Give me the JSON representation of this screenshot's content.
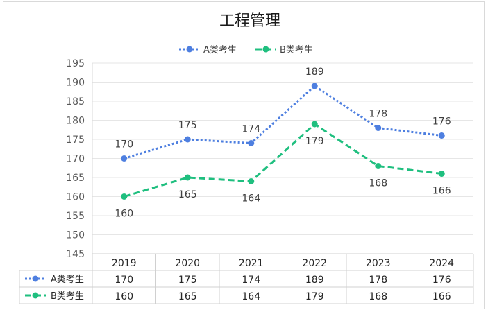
{
  "chart_data": {
    "type": "line",
    "title": "工程管理",
    "categories": [
      "2019",
      "2020",
      "2021",
      "2022",
      "2023",
      "2024"
    ],
    "ylim": [
      145,
      195
    ],
    "yticks": [
      145,
      150,
      155,
      160,
      165,
      170,
      175,
      180,
      185,
      190,
      195
    ],
    "grid": true,
    "legend_position": "top",
    "data_table": true,
    "series": [
      {
        "name": "A类考生",
        "values": [
          170,
          175,
          174,
          189,
          178,
          176
        ],
        "color": "#4e7fe0",
        "style": "dotted",
        "label_position": "above"
      },
      {
        "name": "B类考生",
        "values": [
          160,
          165,
          164,
          179,
          168,
          166
        ],
        "color": "#1fbf7f",
        "style": "dashed",
        "label_position": "below"
      }
    ]
  }
}
